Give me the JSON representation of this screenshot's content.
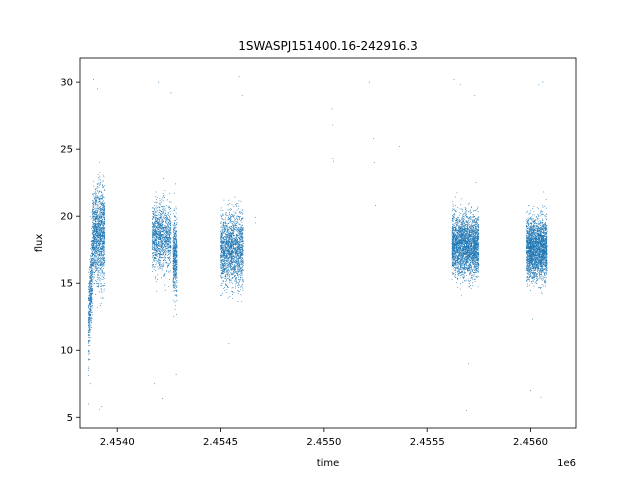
{
  "chart_data": {
    "type": "scatter",
    "title": "1SWASPJ151400.16-242916.3",
    "xlabel": "time",
    "ylabel": "flux",
    "x_offset_label": "1e6",
    "x_scale": 1000000,
    "xlim": [
      2453820,
      2456220
    ],
    "ylim": [
      4.2,
      31.8
    ],
    "x_ticks": [
      2454000,
      2454500,
      2455000,
      2455500,
      2456000
    ],
    "x_tick_labels": [
      "2.4540",
      "2.4545",
      "2.4550",
      "2.4555",
      "2.4560"
    ],
    "y_ticks": [
      5,
      10,
      15,
      20,
      25,
      30
    ],
    "y_tick_labels": [
      "5",
      "10",
      "15",
      "20",
      "25",
      "30"
    ],
    "grid": false,
    "legend": "none",
    "marker_color": "#1f77b4",
    "series": [
      {
        "clusters": [
          {
            "x_range": [
              2453860,
              2453880
            ],
            "y_center": 12,
            "y_spread": 3.5,
            "count": 450
          },
          {
            "x_range": [
              2453880,
              2453940
            ],
            "y_center": 18.5,
            "y_spread": 3.2,
            "count": 1400
          },
          {
            "x_range": [
              2454170,
              2454260
            ],
            "y_center": 18.5,
            "y_spread": 2.2,
            "count": 1200
          },
          {
            "x_range": [
              2454270,
              2454290
            ],
            "y_center": 17,
            "y_spread": 2.6,
            "count": 500
          },
          {
            "x_range": [
              2454500,
              2454610
            ],
            "y_center": 17.5,
            "y_spread": 2.4,
            "count": 1800
          },
          {
            "x_range": [
              2455620,
              2455750
            ],
            "y_center": 17.8,
            "y_spread": 2.0,
            "count": 2800
          },
          {
            "x_range": [
              2455980,
              2456080
            ],
            "y_center": 17.6,
            "y_spread": 2.0,
            "count": 2500
          }
        ],
        "outliers": [
          {
            "x": 2453862,
            "y": 6.0
          },
          {
            "x": 2453870,
            "y": 7.5
          },
          {
            "x": 2453885,
            "y": 30.2
          },
          {
            "x": 2453905,
            "y": 29.5
          },
          {
            "x": 2453915,
            "y": 5.6
          },
          {
            "x": 2453925,
            "y": 5.8
          },
          {
            "x": 2454180,
            "y": 7.5
          },
          {
            "x": 2454200,
            "y": 30.0
          },
          {
            "x": 2454220,
            "y": 6.4
          },
          {
            "x": 2454260,
            "y": 29.2
          },
          {
            "x": 2454285,
            "y": 8.2
          },
          {
            "x": 2454540,
            "y": 10.5
          },
          {
            "x": 2454590,
            "y": 30.4
          },
          {
            "x": 2454605,
            "y": 29.0
          },
          {
            "x": 2454670,
            "y": 19.5
          },
          {
            "x": 2454668,
            "y": 19.9
          },
          {
            "x": 2455040,
            "y": 28.0
          },
          {
            "x": 2455042,
            "y": 26.8
          },
          {
            "x": 2455044,
            "y": 24.3
          },
          {
            "x": 2455046,
            "y": 24.1
          },
          {
            "x": 2455220,
            "y": 30.0
          },
          {
            "x": 2455240,
            "y": 25.8
          },
          {
            "x": 2455244,
            "y": 24.0
          },
          {
            "x": 2455250,
            "y": 20.8
          },
          {
            "x": 2455365,
            "y": 25.2
          },
          {
            "x": 2455630,
            "y": 30.2
          },
          {
            "x": 2455660,
            "y": 29.8
          },
          {
            "x": 2455690,
            "y": 5.5
          },
          {
            "x": 2455700,
            "y": 9.0
          },
          {
            "x": 2455730,
            "y": 29.0
          },
          {
            "x": 2456040,
            "y": 29.8
          },
          {
            "x": 2456060,
            "y": 30.0
          },
          {
            "x": 2456000,
            "y": 7.0
          },
          {
            "x": 2456050,
            "y": 6.5
          }
        ]
      }
    ]
  }
}
